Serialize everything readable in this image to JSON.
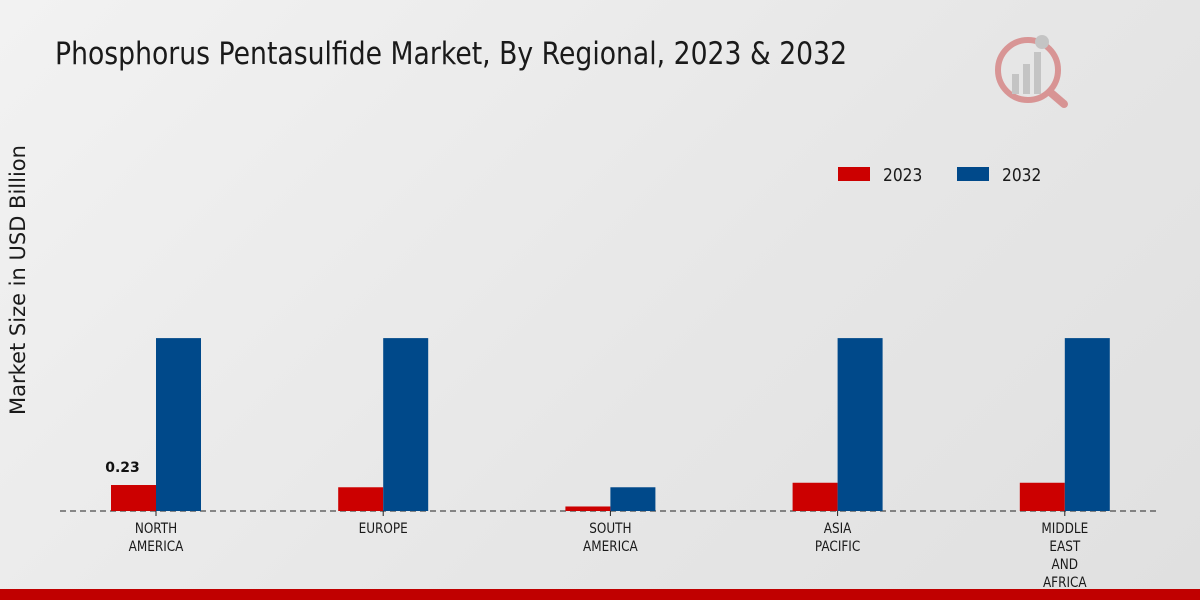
{
  "chart_data": {
    "type": "bar",
    "title": "Phosphorus Pentasulfide Market, By Regional, 2023 & 2032",
    "xlabel": "",
    "ylabel": "Market Size in USD Billion",
    "categories": [
      "NORTH AMERICA",
      "EUROPE",
      "SOUTH AMERICA",
      "ASIA PACIFIC",
      "MIDDLE EAST AND AFRICA"
    ],
    "series": [
      {
        "name": "2023",
        "color": "#cc0000",
        "values": [
          0.23,
          0.21,
          0.04,
          0.25,
          0.25
        ]
      },
      {
        "name": "2032",
        "color": "#00498a",
        "values": [
          1.53,
          1.53,
          0.21,
          1.53,
          1.53
        ]
      }
    ],
    "data_labels": [
      {
        "series": "2023",
        "category": "NORTH AMERICA",
        "text": "0.23"
      }
    ],
    "ylim": [
      0,
      2.0
    ],
    "grid": false,
    "legend": "top-right"
  }
}
